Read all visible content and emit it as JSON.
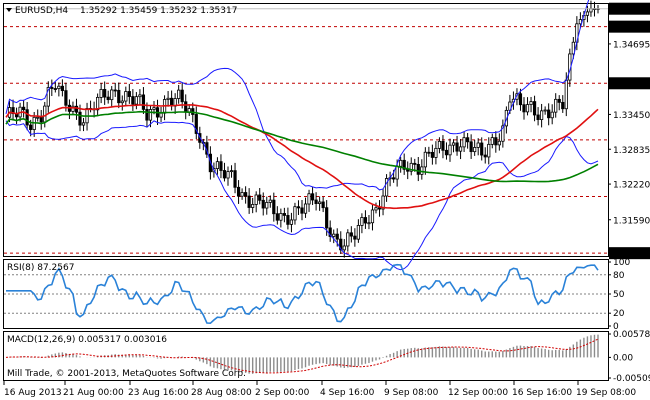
{
  "header": {
    "symbol": "EURUSD,H4",
    "ohlc": "1.35292 1.35459 1.35232 1.35317"
  },
  "rsi_header": "RSI(8) 87.2567",
  "macd_header": "MACD(12,26,9) 0.005317 0.003016",
  "copyright": "Mill Trade, © 2001-2013, MetaQuotes Software Corp.",
  "colors": {
    "candle": "#000000",
    "bollinger": "#1a1aff",
    "ma_fast": "#e01010",
    "ma_slow": "#008000",
    "rsi": "#2a82d8",
    "levels": "#c00000",
    "price_tag": "#000000"
  },
  "chart_data": [
    {
      "type": "candlestick",
      "symbol": "EURUSD",
      "timeframe": "H4",
      "price_ticks": [
        "1.35317",
        "1.35000",
        "1.34695",
        "1.34000",
        "1.33450",
        "1.32835",
        "1.32220",
        "1.31590",
        "1.31000"
      ],
      "ylim": [
        1.3095,
        1.354
      ],
      "levels": [
        "1.35000",
        "1.34000",
        "1.33000",
        "1.32000",
        "1.31000"
      ],
      "current_price": "1.35317",
      "x_ticks": [
        "16 Aug 2013",
        "21 Aug 00:00",
        "23 Aug 16:00",
        "28 Aug 08:00",
        "2 Sep 00:00",
        "4 Sep 16:00",
        "9 Sep 08:00",
        "12 Sep 00:00",
        "16 Sep 16:00",
        "19 Sep 08:00"
      ],
      "close_path": [
        [
          0,
          1.334
        ],
        [
          4,
          1.3345
        ],
        [
          7,
          1.333
        ],
        [
          10,
          1.335
        ],
        [
          12,
          1.338
        ],
        [
          14,
          1.3395
        ],
        [
          16,
          1.337
        ],
        [
          19,
          1.3355
        ],
        [
          22,
          1.334
        ],
        [
          25,
          1.336
        ],
        [
          28,
          1.3375
        ],
        [
          31,
          1.3385
        ],
        [
          34,
          1.338
        ],
        [
          37,
          1.337
        ],
        [
          40,
          1.334
        ],
        [
          43,
          1.3355
        ],
        [
          46,
          1.3375
        ],
        [
          49,
          1.337
        ],
        [
          52,
          1.3345
        ],
        [
          55,
          1.331
        ],
        [
          58,
          1.326
        ],
        [
          61,
          1.324
        ],
        [
          64,
          1.323
        ],
        [
          67,
          1.3205
        ],
        [
          70,
          1.3195
        ],
        [
          73,
          1.3185
        ],
        [
          76,
          1.317
        ],
        [
          79,
          1.3165
        ],
        [
          82,
          1.3175
        ],
        [
          85,
          1.318
        ],
        [
          88,
          1.3195
        ],
        [
          90,
          1.3175
        ],
        [
          93,
          1.313
        ],
        [
          96,
          1.311
        ],
        [
          99,
          1.313
        ],
        [
          102,
          1.3165
        ],
        [
          105,
          1.318
        ],
        [
          108,
          1.3215
        ],
        [
          111,
          1.3245
        ],
        [
          114,
          1.326
        ],
        [
          117,
          1.3255
        ],
        [
          120,
          1.327
        ],
        [
          123,
          1.328
        ],
        [
          126,
          1.329
        ],
        [
          129,
          1.33
        ],
        [
          132,
          1.3285
        ],
        [
          135,
          1.327
        ],
        [
          138,
          1.33
        ],
        [
          141,
          1.332
        ],
        [
          143,
          1.3375
        ],
        [
          146,
          1.3355
        ],
        [
          149,
          1.336
        ],
        [
          152,
          1.335
        ],
        [
          155,
          1.335
        ],
        [
          158,
          1.336
        ],
        [
          160,
          1.344
        ],
        [
          162,
          1.3505
        ],
        [
          164,
          1.352
        ],
        [
          166,
          1.3532
        ]
      ],
      "series": [
        {
          "name": "RSI(8)",
          "panel": "rsi",
          "ylim": [
            0,
            100
          ],
          "ticks": [
            "100",
            "80",
            "50",
            "20",
            "0"
          ],
          "last": 87.2567
        },
        {
          "name": "MACD(12,26,9)",
          "panel": "macd",
          "ticks": [
            "0.005780",
            "0.00",
            "-0.005090"
          ],
          "main": 0.005317,
          "signal": 0.003016
        }
      ]
    }
  ]
}
